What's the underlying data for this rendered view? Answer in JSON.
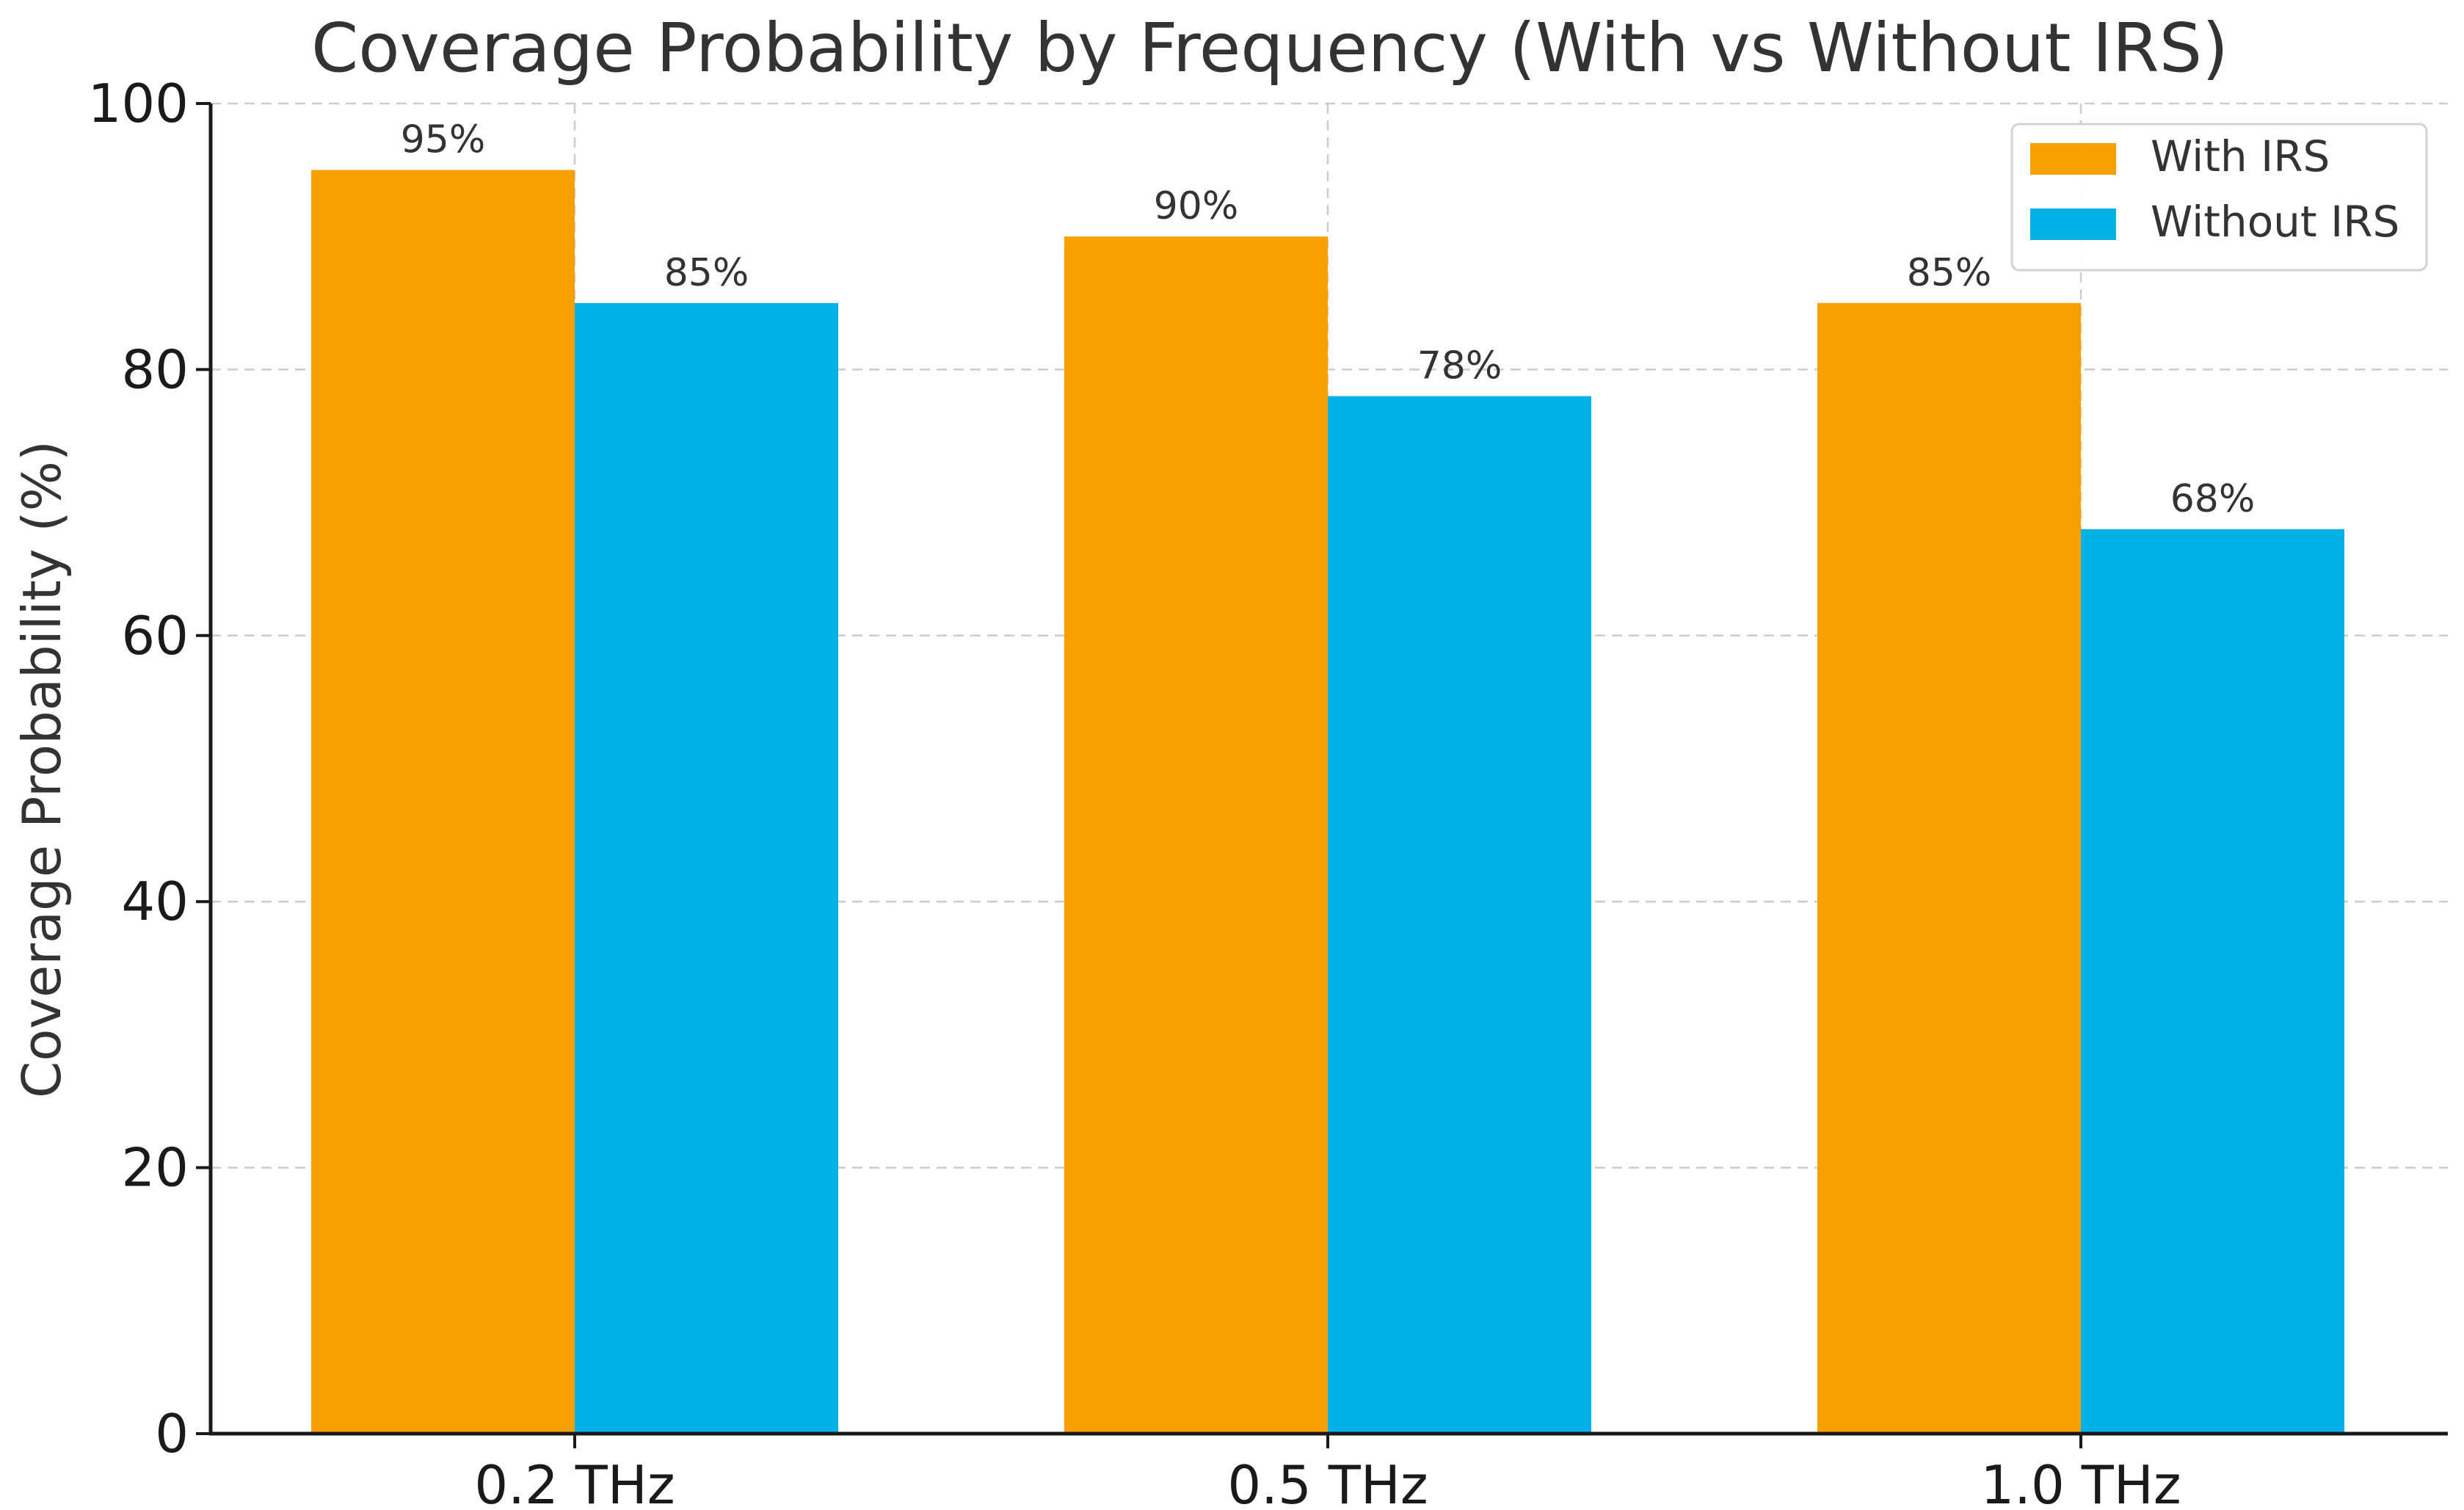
{
  "chart_data": {
    "type": "bar",
    "title": "Coverage Probability by Frequency (With vs Without IRS)",
    "xlabel": "",
    "ylabel": "Coverage Probability (%)",
    "ylim": [
      0,
      100
    ],
    "yticks": [
      0,
      20,
      40,
      60,
      80,
      100
    ],
    "grid": true,
    "legend_position": "top-right",
    "categories": [
      "0.2 THz",
      "0.5 THz",
      "1.0 THz"
    ],
    "series": [
      {
        "name": "With IRS",
        "color": "#F9A000",
        "values": [
          95,
          90,
          85
        ],
        "labels": [
          "95%",
          "90%",
          "85%"
        ]
      },
      {
        "name": "Without IRS",
        "color": "#00B1E8",
        "values": [
          85,
          78,
          68
        ],
        "labels": [
          "85%",
          "78%",
          "68%"
        ]
      }
    ]
  }
}
